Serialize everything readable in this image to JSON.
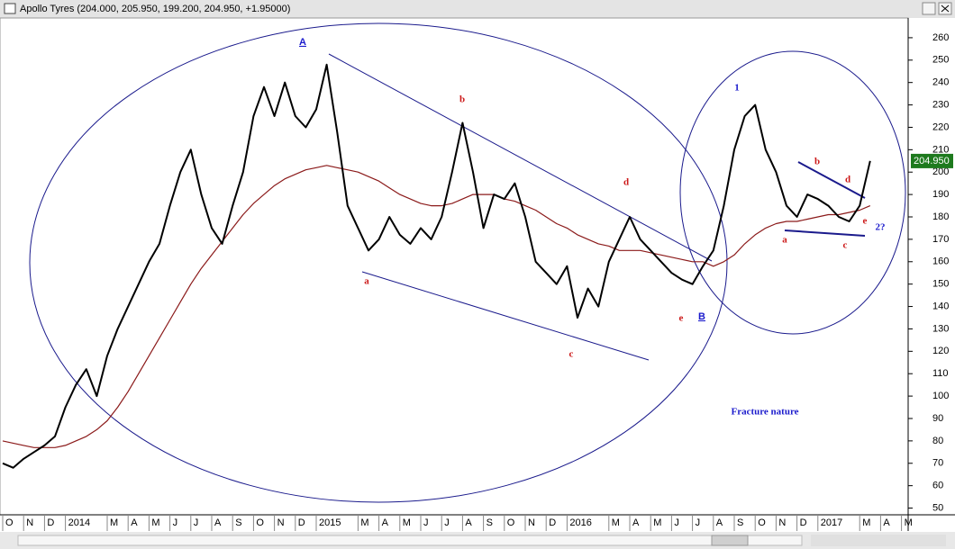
{
  "chart_data": {
    "type": "line",
    "title": "Apollo Tyres (204.000, 205.950, 199.200, 204.950, +1.95000)",
    "categories": [
      "O",
      null,
      "N",
      null,
      "D",
      null,
      "2014",
      null,
      null,
      null,
      "M",
      null,
      "A",
      null,
      "M",
      null,
      "J",
      null,
      "J",
      null,
      "A",
      null,
      "S",
      null,
      "O",
      null,
      "N",
      null,
      "D",
      null,
      "2015",
      null,
      null,
      null,
      "M",
      null,
      "A",
      null,
      "M",
      null,
      "J",
      null,
      "J",
      null,
      "A",
      null,
      "S",
      null,
      "O",
      null,
      "N",
      null,
      "D",
      null,
      "2016",
      null,
      null,
      null,
      "M",
      null,
      "A",
      null,
      "M",
      null,
      "J",
      null,
      "J",
      null,
      "A",
      null,
      "S",
      null,
      "O",
      null,
      "N",
      null,
      "D",
      null,
      "2017",
      null,
      null,
      null,
      "M",
      null,
      "A",
      null,
      "M",
      null
    ],
    "series": [
      {
        "name": "Apollo Tyres",
        "color": "#000000",
        "values": [
          70,
          68,
          72,
          75,
          78,
          82,
          95,
          105,
          112,
          100,
          118,
          130,
          140,
          150,
          160,
          168,
          185,
          200,
          210,
          190,
          175,
          168,
          185,
          200,
          225,
          238,
          225,
          240,
          225,
          220,
          228,
          248,
          218,
          185,
          175,
          165,
          170,
          180,
          172,
          168,
          175,
          170,
          180,
          200,
          222,
          200,
          175,
          190,
          188,
          195,
          180,
          160,
          155,
          150,
          158,
          135,
          148,
          140,
          160,
          170,
          180,
          170,
          165,
          160,
          155,
          152,
          150,
          158,
          165,
          185,
          210,
          225,
          230,
          210,
          200,
          185,
          180,
          190,
          188,
          185,
          180,
          178,
          185,
          205,
          null,
          null,
          null,
          null
        ]
      },
      {
        "name": "Moving average",
        "color": "#8b1a1a",
        "values": [
          80,
          79,
          78,
          77,
          77,
          77,
          78,
          80,
          82,
          85,
          89,
          95,
          102,
          110,
          118,
          126,
          134,
          142,
          150,
          157,
          163,
          169,
          175,
          181,
          186,
          190,
          194,
          197,
          199,
          201,
          202,
          203,
          202,
          201,
          200,
          198,
          196,
          193,
          190,
          188,
          186,
          185,
          185,
          186,
          188,
          190,
          190,
          190,
          188,
          187,
          185,
          183,
          180,
          177,
          175,
          172,
          170,
          168,
          167,
          165,
          165,
          165,
          164,
          163,
          162,
          161,
          160,
          160,
          158,
          160,
          163,
          168,
          172,
          175,
          177,
          178,
          178,
          179,
          180,
          181,
          181,
          182,
          183,
          185,
          null,
          null,
          null,
          null
        ]
      }
    ],
    "ylim": [
      47,
      268
    ],
    "yticks": [
      50,
      60,
      70,
      80,
      90,
      100,
      110,
      120,
      130,
      140,
      150,
      160,
      170,
      180,
      190,
      200,
      210,
      220,
      230,
      240,
      250,
      260
    ],
    "grid": false,
    "last_price": {
      "value": 204.95,
      "label": "204.950"
    },
    "annotations": [
      {
        "text": "A",
        "color": "#1a1acc"
      },
      {
        "text": "a",
        "color": "#cc1a1a"
      },
      {
        "text": "b",
        "color": "#cc1a1a"
      },
      {
        "text": "c",
        "color": "#cc1a1a"
      },
      {
        "text": "d",
        "color": "#cc1a1a"
      },
      {
        "text": "e",
        "color": "#cc1a1a"
      },
      {
        "text": "B",
        "color": "#1a1acc"
      },
      {
        "text": "1",
        "color": "#1a1acc"
      },
      {
        "text": "a",
        "color": "#cc1a1a"
      },
      {
        "text": "b",
        "color": "#cc1a1a"
      },
      {
        "text": "c",
        "color": "#cc1a1a"
      },
      {
        "text": "d",
        "color": "#cc1a1a"
      },
      {
        "text": "e",
        "color": "#cc1a1a"
      },
      {
        "text": "2?",
        "color": "#1a1acc"
      },
      {
        "text": "Fracture nature",
        "color": "#1a1acc"
      }
    ]
  }
}
